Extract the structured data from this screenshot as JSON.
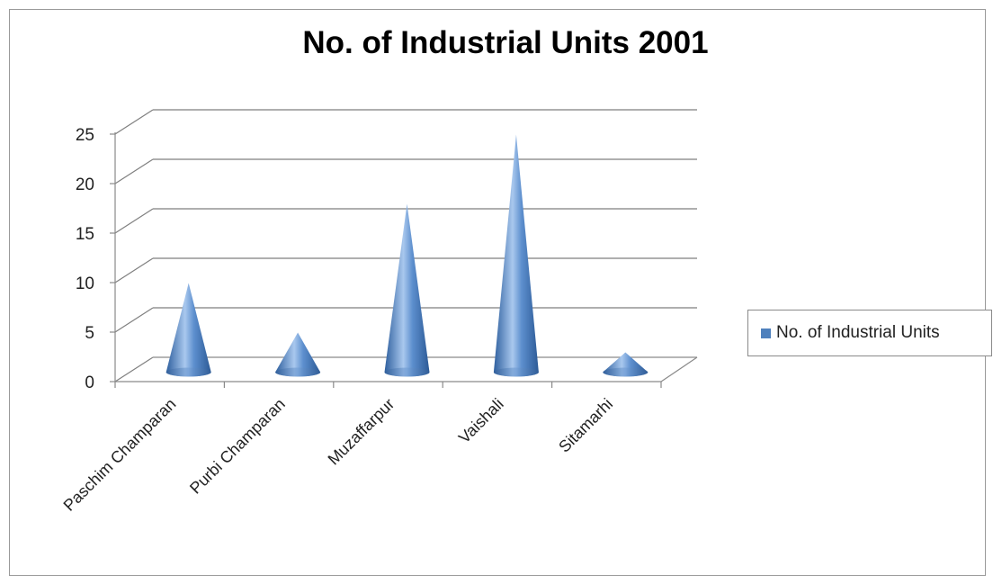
{
  "chart_data": {
    "type": "bar",
    "title": "No. of Industrial Units 2001",
    "categories": [
      "Paschim Champaran",
      "Purbi Champaran",
      "Muzaffarpur",
      "Vaishali",
      "Sitamarhi"
    ],
    "series": [
      {
        "name": "No. of Industrial Units",
        "values": [
          9,
          4,
          17,
          24,
          2
        ]
      }
    ],
    "xlabel": "",
    "ylabel": "",
    "ylim": [
      0,
      25
    ],
    "yticks": [
      "0",
      "5",
      "10",
      "15",
      "20",
      "25"
    ],
    "grid": true,
    "legend": "right",
    "bar_shape": "cone",
    "bar_color": "#4f81bd"
  }
}
